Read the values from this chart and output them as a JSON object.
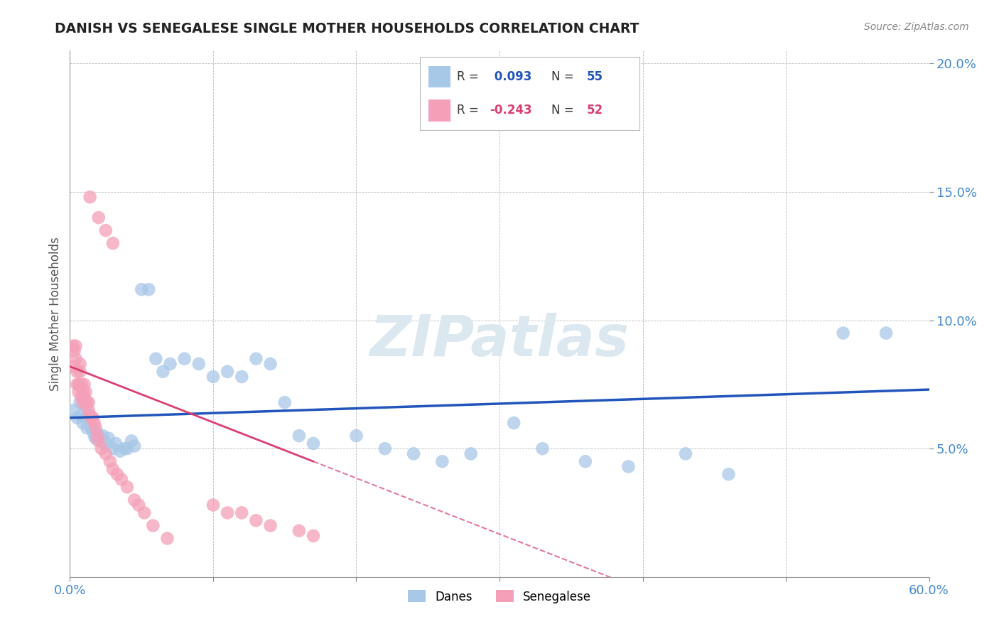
{
  "title": "DANISH VS SENEGALESE SINGLE MOTHER HOUSEHOLDS CORRELATION CHART",
  "source": "Source: ZipAtlas.com",
  "ylabel": "Single Mother Households",
  "xlim": [
    0.0,
    0.6
  ],
  "ylim": [
    0.0,
    0.205
  ],
  "xticks": [
    0.0,
    0.1,
    0.2,
    0.3,
    0.4,
    0.5,
    0.6
  ],
  "xticklabels": [
    "0.0%",
    "",
    "",
    "",
    "",
    "",
    "60.0%"
  ],
  "yticks": [
    0.05,
    0.1,
    0.15,
    0.2
  ],
  "yticklabels": [
    "5.0%",
    "10.0%",
    "15.0%",
    "20.0%"
  ],
  "danes_R": 0.093,
  "danes_N": 55,
  "senegalese_R": -0.243,
  "senegalese_N": 52,
  "danes_color": "#a8c8e8",
  "senegalese_color": "#f4a0b8",
  "danes_line_color": "#2255bb",
  "senegalese_line_color": "#d94070",
  "background_color": "#ffffff",
  "grid_color": "#bbbbbb",
  "title_color": "#222222",
  "tick_color": "#4488cc",
  "watermark_color": "#dce8f0",
  "danes_x": [
    0.003,
    0.005,
    0.007,
    0.008,
    0.009,
    0.01,
    0.011,
    0.012,
    0.013,
    0.014,
    0.015,
    0.016,
    0.017,
    0.018,
    0.019,
    0.02,
    0.022,
    0.023,
    0.025,
    0.027,
    0.03,
    0.032,
    0.035,
    0.038,
    0.04,
    0.043,
    0.045,
    0.05,
    0.055,
    0.06,
    0.065,
    0.07,
    0.08,
    0.09,
    0.1,
    0.11,
    0.12,
    0.13,
    0.14,
    0.15,
    0.16,
    0.17,
    0.2,
    0.22,
    0.24,
    0.26,
    0.28,
    0.31,
    0.33,
    0.36,
    0.39,
    0.43,
    0.46,
    0.54,
    0.57
  ],
  "danes_y": [
    0.065,
    0.062,
    0.068,
    0.063,
    0.06,
    0.067,
    0.062,
    0.058,
    0.063,
    0.06,
    0.058,
    0.057,
    0.055,
    0.054,
    0.056,
    0.055,
    0.053,
    0.055,
    0.052,
    0.054,
    0.05,
    0.052,
    0.049,
    0.05,
    0.05,
    0.053,
    0.051,
    0.112,
    0.112,
    0.085,
    0.08,
    0.083,
    0.085,
    0.083,
    0.078,
    0.08,
    0.078,
    0.085,
    0.083,
    0.068,
    0.055,
    0.052,
    0.055,
    0.05,
    0.048,
    0.045,
    0.048,
    0.06,
    0.05,
    0.045,
    0.043,
    0.048,
    0.04,
    0.095,
    0.095
  ],
  "senegalese_x": [
    0.002,
    0.003,
    0.003,
    0.004,
    0.004,
    0.005,
    0.005,
    0.006,
    0.006,
    0.007,
    0.007,
    0.008,
    0.008,
    0.009,
    0.009,
    0.01,
    0.01,
    0.011,
    0.011,
    0.012,
    0.013,
    0.013,
    0.014,
    0.015,
    0.016,
    0.017,
    0.018,
    0.019,
    0.02,
    0.022,
    0.025,
    0.028,
    0.03,
    0.033,
    0.036,
    0.04,
    0.045,
    0.048,
    0.052,
    0.058,
    0.068,
    0.1,
    0.11,
    0.12,
    0.13,
    0.14,
    0.16,
    0.17,
    0.014,
    0.02,
    0.025,
    0.03
  ],
  "senegalese_y": [
    0.09,
    0.082,
    0.088,
    0.085,
    0.09,
    0.075,
    0.08,
    0.072,
    0.075,
    0.08,
    0.083,
    0.075,
    0.07,
    0.068,
    0.072,
    0.07,
    0.075,
    0.068,
    0.072,
    0.068,
    0.065,
    0.068,
    0.063,
    0.062,
    0.062,
    0.06,
    0.058,
    0.055,
    0.053,
    0.05,
    0.048,
    0.045,
    0.042,
    0.04,
    0.038,
    0.035,
    0.03,
    0.028,
    0.025,
    0.02,
    0.015,
    0.028,
    0.025,
    0.025,
    0.022,
    0.02,
    0.018,
    0.016,
    0.148,
    0.14,
    0.135,
    0.13
  ]
}
